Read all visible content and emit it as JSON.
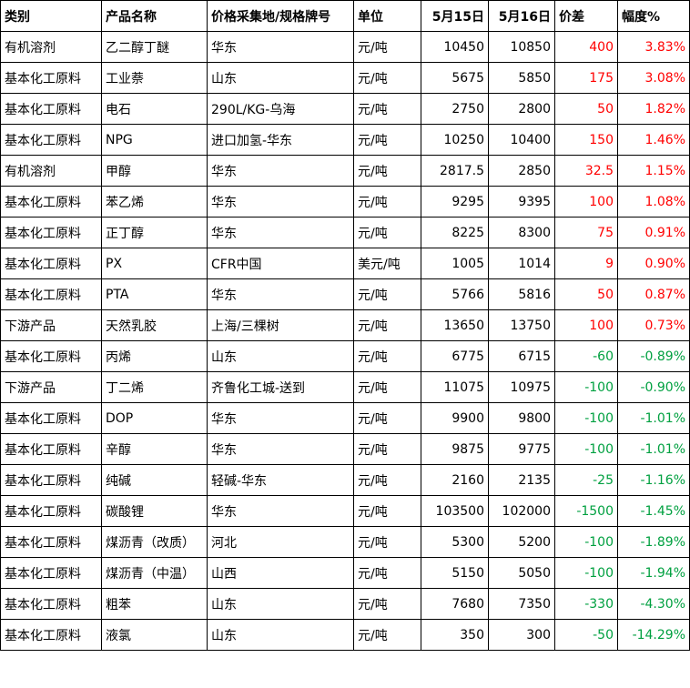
{
  "headers": [
    "类别",
    "产品名称",
    "价格采集地/规格牌号",
    "单位",
    "5月15日",
    "5月16日",
    "价差",
    "幅度%"
  ],
  "colors": {
    "up": "#ff0000",
    "down": "#00a040"
  },
  "rows": [
    {
      "category": "有机溶剂",
      "product": "乙二醇丁醚",
      "spec": "华东",
      "unit": "元/吨",
      "p15": "10450",
      "p16": "10850",
      "diff": "400",
      "pct": "3.83%",
      "trend": "up"
    },
    {
      "category": "基本化工原料",
      "product": "工业萘",
      "spec": "山东",
      "unit": "元/吨",
      "p15": "5675",
      "p16": "5850",
      "diff": "175",
      "pct": "3.08%",
      "trend": "up"
    },
    {
      "category": "基本化工原料",
      "product": "电石",
      "spec": "290L/KG-乌海",
      "unit": "元/吨",
      "p15": "2750",
      "p16": "2800",
      "diff": "50",
      "pct": "1.82%",
      "trend": "up"
    },
    {
      "category": "基本化工原料",
      "product": "NPG",
      "spec": "进口加氢-华东",
      "unit": "元/吨",
      "p15": "10250",
      "p16": "10400",
      "diff": "150",
      "pct": "1.46%",
      "trend": "up"
    },
    {
      "category": "有机溶剂",
      "product": "甲醇",
      "spec": "华东",
      "unit": "元/吨",
      "p15": "2817.5",
      "p16": "2850",
      "diff": "32.5",
      "pct": "1.15%",
      "trend": "up"
    },
    {
      "category": "基本化工原料",
      "product": "苯乙烯",
      "spec": "华东",
      "unit": "元/吨",
      "p15": "9295",
      "p16": "9395",
      "diff": "100",
      "pct": "1.08%",
      "trend": "up"
    },
    {
      "category": "基本化工原料",
      "product": "正丁醇",
      "spec": "华东",
      "unit": "元/吨",
      "p15": "8225",
      "p16": "8300",
      "diff": "75",
      "pct": "0.91%",
      "trend": "up"
    },
    {
      "category": "基本化工原料",
      "product": "PX",
      "spec": "CFR中国",
      "unit": "美元/吨",
      "p15": "1005",
      "p16": "1014",
      "diff": "9",
      "pct": "0.90%",
      "trend": "up"
    },
    {
      "category": "基本化工原料",
      "product": "PTA",
      "spec": "华东",
      "unit": "元/吨",
      "p15": "5766",
      "p16": "5816",
      "diff": "50",
      "pct": "0.87%",
      "trend": "up"
    },
    {
      "category": "下游产品",
      "product": "天然乳胶",
      "spec": "上海/三棵树",
      "unit": "元/吨",
      "p15": "13650",
      "p16": "13750",
      "diff": "100",
      "pct": "0.73%",
      "trend": "up"
    },
    {
      "category": "基本化工原料",
      "product": "丙烯",
      "spec": "山东",
      "unit": "元/吨",
      "p15": "6775",
      "p16": "6715",
      "diff": "-60",
      "pct": "-0.89%",
      "trend": "down"
    },
    {
      "category": "下游产品",
      "product": "丁二烯",
      "spec": "齐鲁化工城-送到",
      "unit": "元/吨",
      "p15": "11075",
      "p16": "10975",
      "diff": "-100",
      "pct": "-0.90%",
      "trend": "down"
    },
    {
      "category": "基本化工原料",
      "product": "DOP",
      "spec": "华东",
      "unit": "元/吨",
      "p15": "9900",
      "p16": "9800",
      "diff": "-100",
      "pct": "-1.01%",
      "trend": "down"
    },
    {
      "category": "基本化工原料",
      "product": "辛醇",
      "spec": "华东",
      "unit": "元/吨",
      "p15": "9875",
      "p16": "9775",
      "diff": "-100",
      "pct": "-1.01%",
      "trend": "down"
    },
    {
      "category": "基本化工原料",
      "product": "纯碱",
      "spec": "轻碱-华东",
      "unit": "元/吨",
      "p15": "2160",
      "p16": "2135",
      "diff": "-25",
      "pct": "-1.16%",
      "trend": "down"
    },
    {
      "category": "基本化工原料",
      "product": "碳酸锂",
      "spec": "华东",
      "unit": "元/吨",
      "p15": "103500",
      "p16": "102000",
      "diff": "-1500",
      "pct": "-1.45%",
      "trend": "down"
    },
    {
      "category": "基本化工原料",
      "product": "煤沥青（改质）",
      "spec": "河北",
      "unit": "元/吨",
      "p15": "5300",
      "p16": "5200",
      "diff": "-100",
      "pct": "-1.89%",
      "trend": "down"
    },
    {
      "category": "基本化工原料",
      "product": "煤沥青（中温）",
      "spec": "山西",
      "unit": "元/吨",
      "p15": "5150",
      "p16": "5050",
      "diff": "-100",
      "pct": "-1.94%",
      "trend": "down"
    },
    {
      "category": "基本化工原料",
      "product": "粗苯",
      "spec": "山东",
      "unit": "元/吨",
      "p15": "7680",
      "p16": "7350",
      "diff": "-330",
      "pct": "-4.30%",
      "trend": "down"
    },
    {
      "category": "基本化工原料",
      "product": "液氯",
      "spec": "山东",
      "unit": "元/吨",
      "p15": "350",
      "p16": "300",
      "diff": "-50",
      "pct": "-14.29%",
      "trend": "down"
    }
  ]
}
